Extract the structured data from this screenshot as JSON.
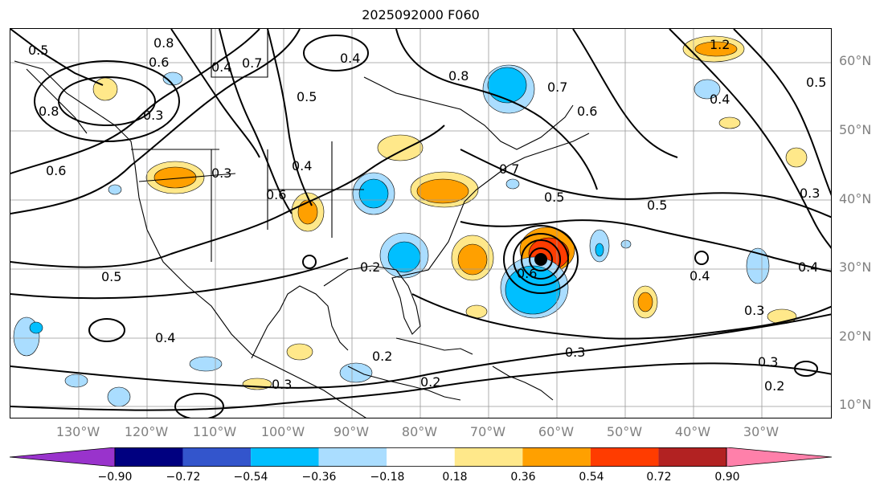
{
  "title": "2025092000 F060",
  "lat_labels": [
    "60°N",
    "50°N",
    "40°N",
    "30°N",
    "20°N",
    "10°N"
  ],
  "lon_labels": [
    "130°W",
    "120°W",
    "110°W",
    "100°W",
    "90°W",
    "80°W",
    "70°W",
    "60°W",
    "50°W",
    "40°W",
    "30°W"
  ],
  "colorbar": {
    "ticks": [
      "−0.90",
      "−0.72",
      "−0.54",
      "−0.36",
      "−0.18",
      "0.18",
      "0.36",
      "0.54",
      "0.72",
      "0.90"
    ],
    "colors": [
      "#9933cc",
      "#000080",
      "#3355cc",
      "#00bfff",
      "#aaddff",
      "#ffffff",
      "#ffe88a",
      "#ffa000",
      "#ff3c00",
      "#b22222",
      "#ff80aa"
    ]
  },
  "contour_labels": [
    "0.5",
    "0.8",
    "0.6",
    "0.4",
    "0.7",
    "0.3",
    "0.8",
    "0.5",
    "0.6",
    "0.3",
    "0.4",
    "0.6",
    "0.5",
    "0.4",
    "0.2",
    "0.8",
    "0.7",
    "0.6",
    "1.2",
    "0.4",
    "0.5",
    "0.5",
    "0.4",
    "0.3",
    "0.4",
    "0.3",
    "0.3",
    "0.2",
    "0.2",
    "0.3",
    "0.2",
    "0.3",
    "0.6",
    "0.4",
    "0.5",
    "0.7"
  ]
}
